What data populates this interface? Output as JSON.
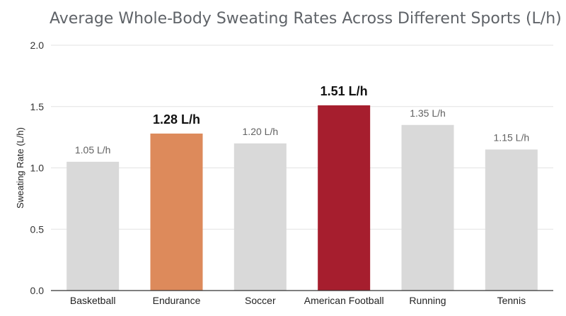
{
  "chart_data": {
    "type": "bar",
    "title": "Average Whole-Body Sweating Rates Across Different Sports (L/h)",
    "xlabel": "",
    "ylabel": "Sweating Rate (L/h)",
    "ylim": [
      0,
      2
    ],
    "yticks": [
      "0.0",
      "0.5",
      "1.0",
      "1.5",
      "2.0"
    ],
    "ytick_values": [
      0,
      0.5,
      1.0,
      1.5,
      2.0
    ],
    "grid": true,
    "legend": "none",
    "categories": [
      "Basketball",
      "Endurance",
      "Soccer",
      "American Football",
      "Running",
      "Tennis"
    ],
    "values": [
      1.05,
      1.28,
      1.2,
      1.51,
      1.35,
      1.15
    ],
    "data_labels": [
      "1.05 L/h",
      "1.28 L/h",
      "1.20 L/h",
      "1.51 L/h",
      "1.35 L/h",
      "1.15 L/h"
    ],
    "highlight": [
      false,
      true,
      false,
      true,
      false,
      false
    ],
    "colors": [
      "#d9d9d9",
      "#dd8a5b",
      "#d9d9d9",
      "#a61e2e",
      "#d9d9d9",
      "#d9d9d9"
    ]
  },
  "style": {
    "grid_color": "#e3e3e3",
    "axis_color": "#333333"
  }
}
